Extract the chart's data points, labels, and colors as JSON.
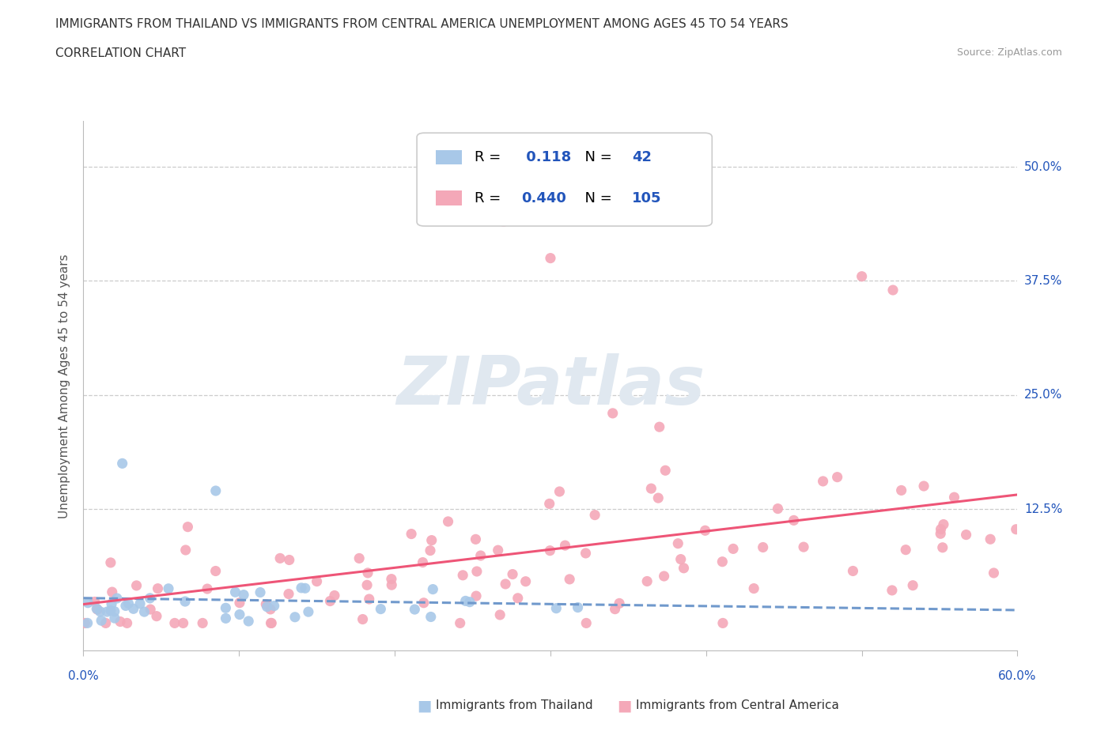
{
  "title_line1": "IMMIGRANTS FROM THAILAND VS IMMIGRANTS FROM CENTRAL AMERICA UNEMPLOYMENT AMONG AGES 45 TO 54 YEARS",
  "title_line2": "CORRELATION CHART",
  "source_text": "Source: ZipAtlas.com",
  "ylabel": "Unemployment Among Ages 45 to 54 years",
  "xlim": [
    0.0,
    0.6
  ],
  "ylim": [
    -0.03,
    0.55
  ],
  "ytick_labels": [
    "12.5%",
    "25.0%",
    "37.5%",
    "50.0%"
  ],
  "ytick_values": [
    0.125,
    0.25,
    0.375,
    0.5
  ],
  "grid_color": "#cccccc",
  "background_color": "#ffffff",
  "thailand_color": "#a8c8e8",
  "central_america_color": "#f4a8b8",
  "thailand_R": 0.118,
  "thailand_N": 42,
  "central_america_R": 0.44,
  "central_america_N": 105,
  "thailand_line_color": "#7099cc",
  "central_america_line_color": "#ee5577",
  "r_n_text_color": "#000000",
  "r_n_value_color": "#2255bb",
  "legend_label_thailand": "Immigrants from Thailand",
  "legend_label_central_america": "Immigrants from Central America",
  "watermark_color": "#e0e8f0"
}
